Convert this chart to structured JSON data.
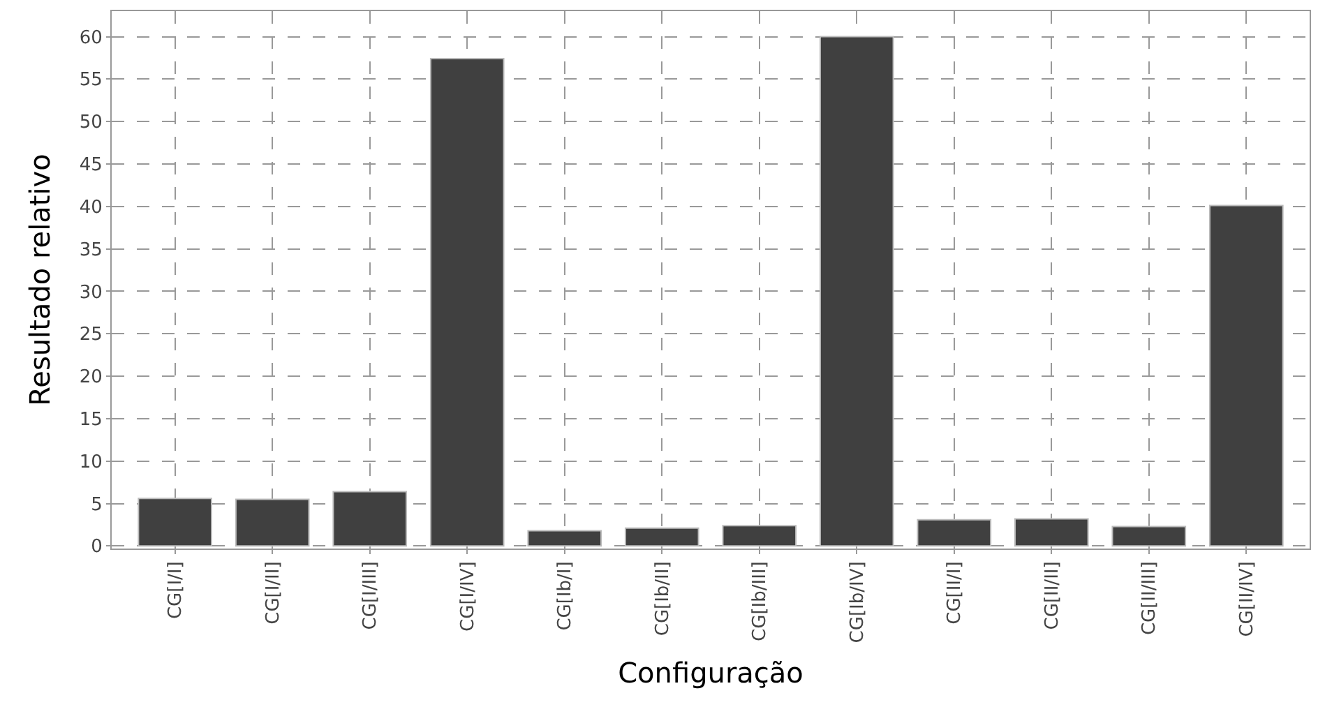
{
  "chart_data": {
    "type": "bar",
    "xlabel": "Configuração",
    "ylabel": "Resultado relativo",
    "categories": [
      "CG[I/I]",
      "CG[I/II]",
      "CG[I/III]",
      "CG[I/IV]",
      "CG[Ib/I]",
      "CG[Ib/II]",
      "CG[Ib/III]",
      "CG[Ib/IV]",
      "CG[II/I]",
      "CG[II/II]",
      "CG[II/III]",
      "CG[II/IV]"
    ],
    "values": [
      5.6,
      5.5,
      6.4,
      57.4,
      1.8,
      2.1,
      2.4,
      60.0,
      3.1,
      3.2,
      2.3,
      40.1
    ],
    "color": "#404040",
    "ylim": [
      -0.3,
      63
    ],
    "yticks": [
      0,
      5,
      10,
      15,
      20,
      25,
      30,
      35,
      40,
      45,
      50,
      55,
      60
    ],
    "grid": true
  }
}
